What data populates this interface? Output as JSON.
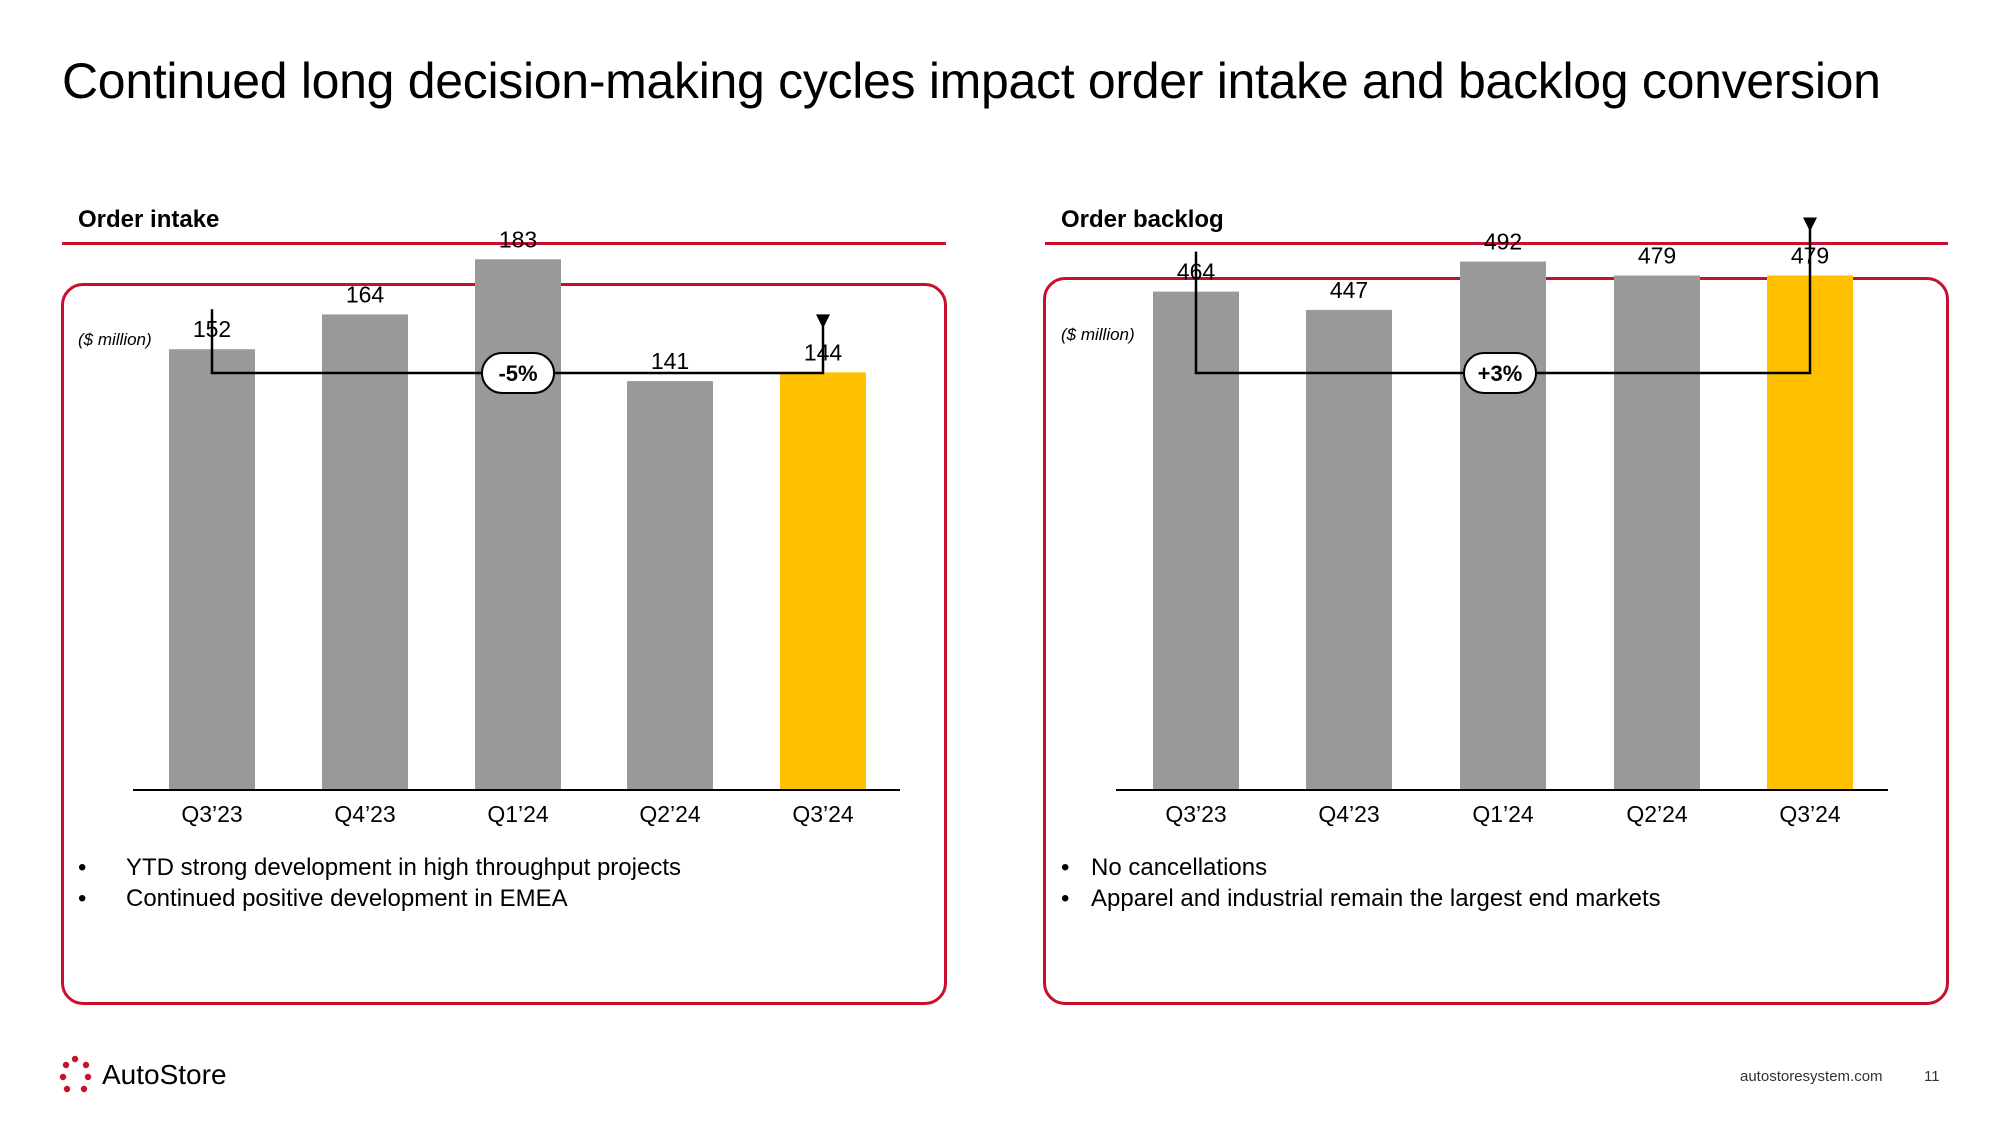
{
  "title": "Continued long decision-making cycles impact order intake and backlog conversion",
  "left": {
    "heading": "Order intake",
    "unit": "($ million)",
    "change_label": "-5%",
    "bullets": [
      "YTD strong development in high throughput projects",
      "Continued positive development in EMEA"
    ]
  },
  "right": {
    "heading": "Order backlog",
    "unit": "($ million)",
    "change_label": "+3%",
    "bullets": [
      "No cancellations",
      "Apparel and industrial remain the largest end markets"
    ]
  },
  "chart_data": [
    {
      "type": "bar",
      "title": "Order intake",
      "ylabel": "($ million)",
      "categories": [
        "Q3’23",
        "Q4’23",
        "Q1’24",
        "Q2’24",
        "Q3’24"
      ],
      "values": [
        152,
        164,
        183,
        141,
        144
      ],
      "highlight_index": 4,
      "ylim": [
        0,
        200
      ],
      "annotation": {
        "from_index": 0,
        "to_index": 4,
        "label": "-5%"
      }
    },
    {
      "type": "bar",
      "title": "Order backlog",
      "ylabel": "($ million)",
      "categories": [
        "Q3’23",
        "Q4’23",
        "Q1’24",
        "Q2’24",
        "Q3’24"
      ],
      "values": [
        464,
        447,
        492,
        479,
        479
      ],
      "highlight_index": 4,
      "ylim": [
        0,
        540
      ],
      "annotation": {
        "from_index": 0,
        "to_index": 4,
        "label": "+3%"
      }
    }
  ],
  "colors": {
    "accent": "#c8102e",
    "bar": "#999999",
    "highlight": "#ffc000",
    "logo_dot": "#c8102e"
  },
  "logo": {
    "name": "AutoStore"
  },
  "footer": {
    "site": "autostoresystem.com",
    "page": "11"
  }
}
